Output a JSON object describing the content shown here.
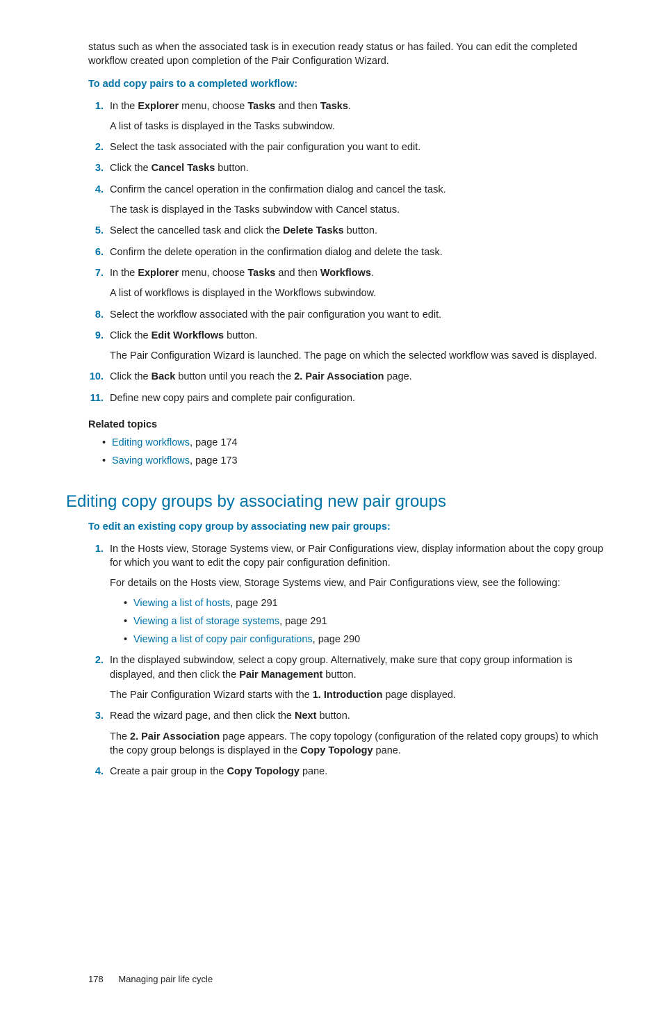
{
  "intro_para": "status such as when the associated task is in execution ready status or has failed. You can edit the completed workflow created upon completion of the Pair Configuration Wizard.",
  "add_copy_pairs_heading": "To add copy pairs to a completed workflow:",
  "steps": {
    "s1_pre": "In the ",
    "s1_b1": "Explorer",
    "s1_mid1": " menu, choose ",
    "s1_b2": "Tasks",
    "s1_mid2": " and then ",
    "s1_b3": "Tasks",
    "s1_post": ".",
    "s1_sub": "A list of tasks is displayed in the Tasks subwindow.",
    "s2": "Select the task associated with the pair configuration you want to edit.",
    "s3_pre": "Click the ",
    "s3_b": "Cancel Tasks",
    "s3_post": " button.",
    "s4": "Confirm the cancel operation in the confirmation dialog and cancel the task.",
    "s4_sub": "The task is displayed in the Tasks subwindow with Cancel status.",
    "s5_pre": "Select the cancelled task and click the ",
    "s5_b": "Delete Tasks",
    "s5_post": " button.",
    "s6": "Confirm the delete operation in the confirmation dialog and delete the task.",
    "s7_pre": "In the ",
    "s7_b1": "Explorer",
    "s7_mid1": " menu, choose ",
    "s7_b2": "Tasks",
    "s7_mid2": " and then ",
    "s7_b3": "Workflows",
    "s7_post": ".",
    "s7_sub": "A list of workflows is displayed in the Workflows subwindow.",
    "s8": "Select the workflow associated with the pair configuration you want to edit.",
    "s9_pre": "Click the ",
    "s9_b": "Edit Workflows",
    "s9_post": " button.",
    "s9_sub": "The Pair Configuration Wizard is launched. The page on which the selected workflow was saved is displayed.",
    "s10_pre": "Click the ",
    "s10_b1": "Back",
    "s10_mid": " button until you reach the ",
    "s10_b2": "2. Pair Association",
    "s10_post": " page.",
    "s11": "Define new copy pairs and complete pair configuration."
  },
  "related": {
    "heading": "Related topics",
    "r1_link": "Editing workflows",
    "r1_post": ", page 174",
    "r2_link": "Saving workflows",
    "r2_post": ", page 173"
  },
  "section_title": "Editing copy groups by associating new pair groups",
  "edit_heading": "To edit an existing copy group by associating new pair groups:",
  "edit_steps": {
    "e1": "In the Hosts view, Storage Systems view, or Pair Configurations view, display information about the copy group for which you want to edit the copy pair configuration definition.",
    "e1_sub": "For details on the Hosts view, Storage Systems view, and Pair Configurations view, see the following:",
    "e1_l1_link": "Viewing a list of hosts",
    "e1_l1_post": ", page 291",
    "e1_l2_link": "Viewing a list of storage systems",
    "e1_l2_post": ", page 291",
    "e1_l3_link": "Viewing a list of copy pair configurations",
    "e1_l3_post": ", page 290",
    "e2_pre": "In the displayed subwindow, select a copy group. Alternatively, make sure that copy group information is displayed, and then click the ",
    "e2_b": "Pair Management",
    "e2_post": " button.",
    "e2_sub_pre": "The Pair Configuration Wizard starts with the ",
    "e2_sub_b": "1. Introduction",
    "e2_sub_post": " page displayed.",
    "e3_pre": "Read the wizard page, and then click the ",
    "e3_b": "Next",
    "e3_post": " button.",
    "e3_sub_pre": "The ",
    "e3_sub_b1": "2. Pair Association",
    "e3_sub_mid": " page appears. The copy topology (configuration of the related copy groups) to which the copy group belongs is displayed in the ",
    "e3_sub_b2": "Copy Topology",
    "e3_sub_post": " pane.",
    "e4_pre": "Create a pair group in the ",
    "e4_b": "Copy Topology",
    "e4_post": " pane."
  },
  "footer": {
    "page_num": "178",
    "chapter": "Managing pair life cycle"
  }
}
